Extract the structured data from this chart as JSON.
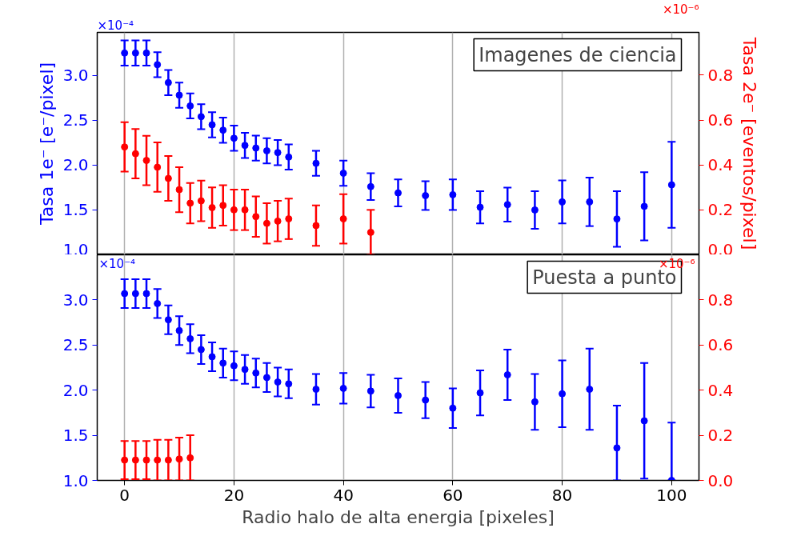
{
  "chart_data": [
    {
      "type": "scatter",
      "title": "Imagenes de ciencia",
      "ylabel": "Tasa 1e⁻ [e⁻/pixel]",
      "y2label": "Tasa 2e⁻ [eventos/pixel]",
      "annotations": [
        "×10⁻⁴",
        "×10⁻⁶"
      ],
      "xlim": [
        -5,
        105
      ],
      "xticks": [
        0,
        20,
        40,
        60,
        80,
        100
      ],
      "ylim": [
        1.0,
        3.48
      ],
      "yticks": [
        {
          "value": 1.0,
          "label": "1.0"
        },
        {
          "value": 1.5,
          "label": "1.5"
        },
        {
          "value": 2.0,
          "label": "2.0"
        },
        {
          "value": 2.5,
          "label": "2.5"
        },
        {
          "value": 3.0,
          "label": "3.0"
        }
      ],
      "y2lim": [
        0.0,
        0.99
      ],
      "y2ticks": [
        {
          "value": 0.0,
          "label": "0.0"
        },
        0.2,
        0.4,
        0.6,
        0.8
      ],
      "grid": "x",
      "marker": "circle",
      "tick_labels": "y",
      "series": [
        {
          "color": "#0000ff",
          "axis": "y",
          "x": [
            0,
            2,
            4,
            6,
            8,
            10,
            12,
            14,
            16,
            18,
            20,
            22,
            24,
            26,
            28,
            30,
            35,
            40,
            45,
            50,
            55,
            60,
            65,
            70,
            75,
            80,
            85,
            90,
            95,
            100
          ],
          "values": [
            3.25,
            3.25,
            3.25,
            3.12,
            2.92,
            2.78,
            2.66,
            2.54,
            2.45,
            2.39,
            2.3,
            2.22,
            2.19,
            2.16,
            2.14,
            2.09,
            2.02,
            1.91,
            1.76,
            1.69,
            1.66,
            1.67,
            1.53,
            1.56,
            1.5,
            1.59,
            1.59,
            1.4,
            1.54,
            1.78
          ],
          "errors": [
            0.14,
            0.14,
            0.14,
            0.14,
            0.14,
            0.14,
            0.14,
            0.14,
            0.14,
            0.14,
            0.14,
            0.14,
            0.14,
            0.14,
            0.14,
            0.14,
            0.14,
            0.14,
            0.15,
            0.15,
            0.16,
            0.17,
            0.18,
            0.19,
            0.21,
            0.24,
            0.27,
            0.31,
            0.38,
            0.48
          ]
        },
        {
          "color": "#ff0000",
          "axis": "y2",
          "x": [
            0,
            2,
            4,
            6,
            8,
            10,
            12,
            14,
            16,
            18,
            20,
            22,
            24,
            26,
            28,
            30,
            35,
            40,
            45
          ],
          "values": [
            0.48,
            0.45,
            0.42,
            0.39,
            0.34,
            0.29,
            0.23,
            0.24,
            0.21,
            0.22,
            0.2,
            0.2,
            0.17,
            0.14,
            0.15,
            0.16,
            0.13,
            0.16,
            0.1
          ],
          "errors": [
            0.11,
            0.11,
            0.11,
            0.11,
            0.1,
            0.1,
            0.09,
            0.09,
            0.09,
            0.09,
            0.09,
            0.09,
            0.09,
            0.09,
            0.09,
            0.09,
            0.09,
            0.11,
            0.1
          ]
        }
      ]
    },
    {
      "type": "scatter",
      "title": "Puesta a punto",
      "xlabel": "Radio halo de alta energia [pixeles]",
      "annotations": [
        "×10⁻⁴",
        "×10⁻⁶"
      ],
      "xlim": [
        -5,
        105
      ],
      "xticks": [
        0,
        20,
        40,
        60,
        80,
        100
      ],
      "ylim": [
        1.0,
        3.5
      ],
      "yticks": [
        {
          "value": 1.0,
          "label": "1.0"
        },
        {
          "value": 1.5,
          "label": "1.5"
        },
        {
          "value": 2.0,
          "label": "2.0"
        },
        {
          "value": 2.5,
          "label": "2.5"
        },
        {
          "value": 3.0,
          "label": "3.0"
        }
      ],
      "y2lim": [
        0.0,
        1.0
      ],
      "y2ticks": [
        {
          "value": 0.0,
          "label": "0.0"
        },
        0.2,
        0.4,
        0.6,
        0.8
      ],
      "grid": "x",
      "marker": "circle",
      "series": [
        {
          "color": "#0000ff",
          "axis": "y",
          "x": [
            0,
            2,
            4,
            6,
            8,
            10,
            12,
            14,
            16,
            18,
            20,
            22,
            24,
            26,
            28,
            30,
            35,
            40,
            45,
            50,
            55,
            60,
            65,
            70,
            75,
            80,
            85,
            90,
            95,
            100
          ],
          "values": [
            3.07,
            3.07,
            3.07,
            2.96,
            2.78,
            2.66,
            2.57,
            2.45,
            2.37,
            2.3,
            2.27,
            2.23,
            2.19,
            2.14,
            2.09,
            2.07,
            2.01,
            2.02,
            1.99,
            1.94,
            1.89,
            1.8,
            1.97,
            2.17,
            1.87,
            1.96,
            2.01,
            1.36,
            1.66,
            1.0
          ],
          "errors": [
            0.16,
            0.16,
            0.16,
            0.16,
            0.16,
            0.16,
            0.16,
            0.16,
            0.16,
            0.16,
            0.16,
            0.16,
            0.16,
            0.16,
            0.16,
            0.16,
            0.17,
            0.17,
            0.18,
            0.19,
            0.2,
            0.22,
            0.25,
            0.28,
            0.31,
            0.37,
            0.45,
            [
              1.0,
              1.83
            ],
            0.64,
            [
              1.0,
              1.64
            ]
          ]
        },
        {
          "color": "#ff0000",
          "axis": "y2",
          "x": [
            0,
            2,
            4,
            6,
            8,
            10,
            12
          ],
          "values": [
            0.09,
            0.09,
            0.09,
            0.09,
            0.09,
            0.095,
            0.1
          ],
          "errors": [
            0.085,
            0.085,
            0.085,
            0.09,
            0.09,
            0.095,
            0.1
          ]
        }
      ]
    }
  ]
}
